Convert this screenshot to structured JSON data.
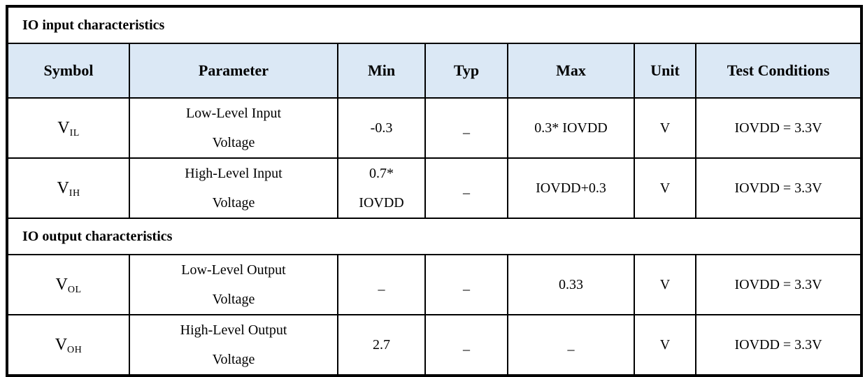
{
  "table": {
    "section_input_title": "IO input characteristics",
    "section_output_title": "IO output characteristics",
    "columns": [
      "Symbol",
      "Parameter",
      "Min",
      "Typ",
      "Max",
      "Unit",
      "Test Conditions"
    ],
    "header_bg_color": "#dbe8f5",
    "border_color": "#000000",
    "rows": [
      {
        "symbol_base": "V",
        "symbol_sub": "IL",
        "parameter": "Low-Level Input\nVoltage",
        "min": "-0.3",
        "typ": "_",
        "max": "0.3* IOVDD",
        "unit": "V",
        "test_conditions": "IOVDD = 3.3V"
      },
      {
        "symbol_base": "V",
        "symbol_sub": "IH",
        "parameter": "High-Level Input\nVoltage",
        "min": "0.7*\nIOVDD",
        "typ": "_",
        "max": "IOVDD+0.3",
        "unit": "V",
        "test_conditions": "IOVDD = 3.3V"
      },
      {
        "symbol_base": "V",
        "symbol_sub": "OL",
        "parameter": "Low-Level Output\nVoltage",
        "min": "_",
        "typ": "_",
        "max": "0.33",
        "unit": "V",
        "test_conditions": "IOVDD = 3.3V"
      },
      {
        "symbol_base": "V",
        "symbol_sub": "OH",
        "parameter": "High-Level Output\nVoltage",
        "min": "2.7",
        "typ": "_",
        "max": "_",
        "unit": "V",
        "test_conditions": "IOVDD = 3.3V"
      }
    ]
  }
}
